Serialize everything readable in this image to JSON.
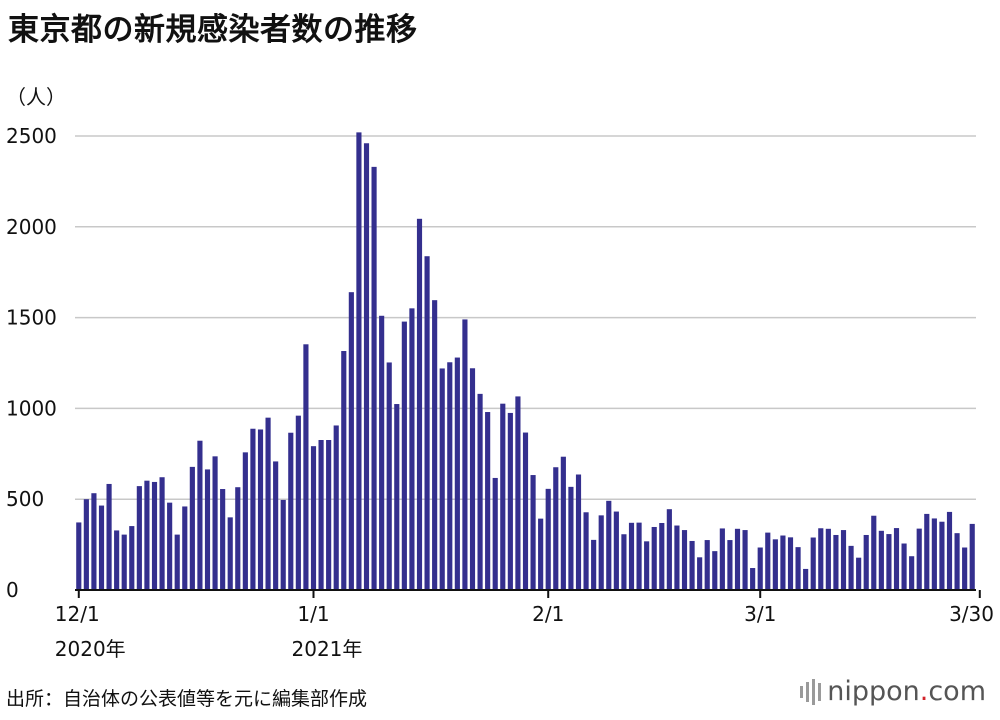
{
  "title": "東京都の新規感染者数の推移",
  "source": "出所：自治体の公表値等を元に編集部作成",
  "brand": {
    "name": "nippon",
    "dot": ".",
    "tld": "com"
  },
  "colors": {
    "bar": "#342f8e",
    "grid": "#c8c8c8",
    "axis": "#111111",
    "brand_dot": "#d2232a"
  },
  "chart_data": {
    "type": "bar",
    "unit_label": "（人）",
    "ylim": [
      0,
      2500
    ],
    "yticks": [
      "0",
      "500",
      "1000",
      "1500",
      "2000",
      "2500"
    ],
    "grid": true,
    "x_ticks": [
      {
        "label": "12/1",
        "sub": "2020年",
        "index": 0
      },
      {
        "label": "1/1",
        "sub": "2021年",
        "index": 31
      },
      {
        "label": "2/1",
        "sub": "",
        "index": 62
      },
      {
        "label": "3/1",
        "sub": "",
        "index": 90
      },
      {
        "label": "3/30",
        "sub": "",
        "index": 119
      }
    ],
    "values": [
      372,
      500,
      533,
      465,
      584,
      328,
      305,
      352,
      572,
      602,
      595,
      621,
      481,
      305,
      460,
      678,
      822,
      664,
      736,
      556,
      400,
      566,
      758,
      888,
      884,
      949,
      708,
      496,
      866,
      960,
      1353,
      792,
      826,
      826,
      906,
      1316,
      1640,
      2520,
      2460,
      2330,
      1510,
      1253,
      1024,
      1478,
      1551,
      2044,
      1838,
      1596,
      1220,
      1254,
      1280,
      1490,
      1221,
      1080,
      980,
      617,
      1026,
      975,
      1066,
      867,
      633,
      393,
      557,
      676,
      734,
      568,
      636,
      428,
      276,
      411,
      491,
      432,
      307,
      370,
      371,
      268,
      347,
      369,
      445,
      355,
      330,
      270,
      180,
      275,
      214,
      339,
      275,
      337,
      330,
      121,
      234,
      316,
      279,
      300,
      290,
      236,
      116,
      289,
      340,
      337,
      303,
      330,
      243,
      178,
      303,
      409,
      326,
      308,
      341,
      256,
      186,
      338,
      419,
      394,
      376,
      430,
      313,
      234,
      364
    ]
  }
}
